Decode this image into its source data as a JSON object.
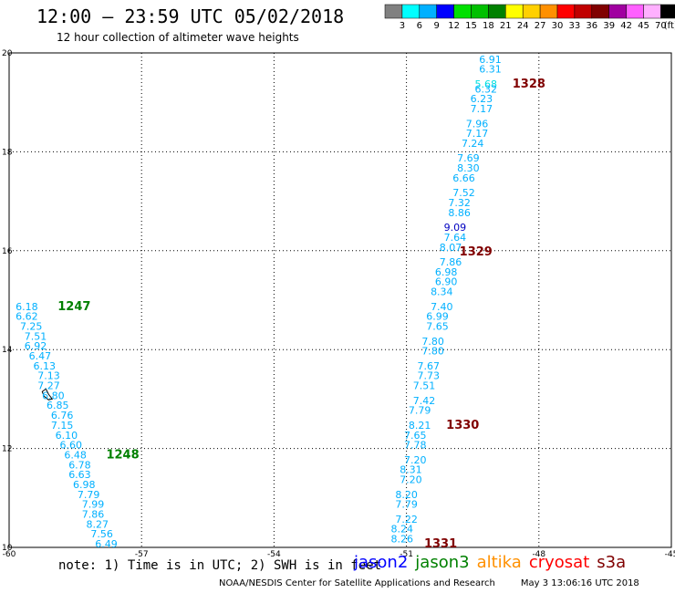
{
  "header": {
    "title": "12:00 — 23:59 UTC 05/02/2018",
    "subtitle": "12 hour collection of altimeter wave heights"
  },
  "colorbar": {
    "unit": "(ft)",
    "bins": [
      {
        "color": "#808080",
        "label": "3"
      },
      {
        "color": "#00ffff",
        "label": "6"
      },
      {
        "color": "#00b0ff",
        "label": "9"
      },
      {
        "color": "#0000ff",
        "label": "12"
      },
      {
        "color": "#00e000",
        "label": "15"
      },
      {
        "color": "#00c000",
        "label": "18"
      },
      {
        "color": "#008000",
        "label": "21"
      },
      {
        "color": "#ffff00",
        "label": "24"
      },
      {
        "color": "#ffd000",
        "label": "27"
      },
      {
        "color": "#ff9000",
        "label": "30"
      },
      {
        "color": "#ff0000",
        "label": "33"
      },
      {
        "color": "#c00000",
        "label": "36"
      },
      {
        "color": "#800000",
        "label": "39"
      },
      {
        "color": "#a000a0",
        "label": "42"
      },
      {
        "color": "#ff60ff",
        "label": "45"
      },
      {
        "color": "#ffb0ff",
        "label": "70"
      },
      {
        "color": "#000000",
        "label": ""
      }
    ]
  },
  "map": {
    "lon_range": [
      -60,
      -45
    ],
    "lat_range": [
      10,
      20
    ],
    "x_ticks": [
      -60,
      -57,
      -54,
      -51,
      -48,
      -45
    ],
    "y_ticks": [
      10,
      12,
      14,
      16,
      18,
      20
    ],
    "grid": true
  },
  "chart_data": {
    "type": "scatter",
    "tracks": [
      {
        "label": "1247",
        "label_color": "#008000",
        "label_lon": -58.9,
        "label_lat": 14.8,
        "color": "#00b0ff",
        "points": [
          {
            "lon": -59.6,
            "lat": 14.8,
            "v": "6.18"
          },
          {
            "lon": -59.6,
            "lat": 14.6,
            "v": "6.62"
          },
          {
            "lon": -59.5,
            "lat": 14.4,
            "v": "7.25"
          },
          {
            "lon": -59.4,
            "lat": 14.2,
            "v": "7.51"
          },
          {
            "lon": -59.4,
            "lat": 14.0,
            "v": "6.92"
          },
          {
            "lon": -59.3,
            "lat": 13.8,
            "v": "6.47"
          },
          {
            "lon": -59.2,
            "lat": 13.6,
            "v": "6.13"
          },
          {
            "lon": -59.1,
            "lat": 13.4,
            "v": "7.13"
          },
          {
            "lon": -59.1,
            "lat": 13.2,
            "v": "7.27"
          },
          {
            "lon": -59.0,
            "lat": 13.0,
            "v": "6.80"
          },
          {
            "lon": -58.9,
            "lat": 12.8,
            "v": "6.85"
          },
          {
            "lon": -58.8,
            "lat": 12.6,
            "v": "6.76"
          },
          {
            "lon": -58.8,
            "lat": 12.4,
            "v": "7.15"
          },
          {
            "lon": -58.7,
            "lat": 12.2,
            "v": "6.10"
          },
          {
            "lon": -58.6,
            "lat": 12.0,
            "v": "6.60"
          }
        ]
      },
      {
        "label": "1248",
        "label_color": "#008000",
        "label_lon": -57.8,
        "label_lat": 11.8,
        "color": "#00b0ff",
        "points": [
          {
            "lon": -58.5,
            "lat": 11.8,
            "v": "6.48"
          },
          {
            "lon": -58.4,
            "lat": 11.6,
            "v": "6.78"
          },
          {
            "lon": -58.4,
            "lat": 11.4,
            "v": "6.63"
          },
          {
            "lon": -58.3,
            "lat": 11.2,
            "v": "6.98"
          },
          {
            "lon": -58.2,
            "lat": 11.0,
            "v": "7.79"
          },
          {
            "lon": -58.1,
            "lat": 10.8,
            "v": "7.99"
          },
          {
            "lon": -58.1,
            "lat": 10.6,
            "v": "7.86"
          },
          {
            "lon": -58.0,
            "lat": 10.4,
            "v": "8.27"
          },
          {
            "lon": -57.9,
            "lat": 10.2,
            "v": "7.56"
          },
          {
            "lon": -57.8,
            "lat": 10.0,
            "v": "6.49"
          }
        ]
      },
      {
        "label": "1328",
        "label_color": "#800000",
        "label_lon": -48.6,
        "label_lat": 19.3,
        "color": "#00b0ff",
        "points": [
          {
            "lon": -49.1,
            "lat": 19.8,
            "v": "6.91"
          },
          {
            "lon": -49.1,
            "lat": 19.6,
            "v": "6.31"
          },
          {
            "lon": -49.2,
            "lat": 19.3,
            "v": "5.68",
            "color": "#00e0e0"
          },
          {
            "lon": -49.2,
            "lat": 19.2,
            "v": "6.32"
          },
          {
            "lon": -49.3,
            "lat": 19.0,
            "v": "6.23"
          },
          {
            "lon": -49.3,
            "lat": 18.8,
            "v": "7.17"
          },
          {
            "lon": -49.4,
            "lat": 18.5,
            "v": "7.96"
          },
          {
            "lon": -49.4,
            "lat": 18.3,
            "v": "7.17"
          },
          {
            "lon": -49.5,
            "lat": 18.1,
            "v": "7.24"
          }
        ]
      },
      {
        "label": "1329",
        "label_color": "#800000",
        "label_lon": -49.8,
        "label_lat": 15.9,
        "color": "#00b0ff",
        "points": [
          {
            "lon": -49.6,
            "lat": 17.8,
            "v": "7.69"
          },
          {
            "lon": -49.6,
            "lat": 17.6,
            "v": "8.30"
          },
          {
            "lon": -49.7,
            "lat": 17.4,
            "v": "6.66"
          },
          {
            "lon": -49.7,
            "lat": 17.1,
            "v": "7.52"
          },
          {
            "lon": -49.8,
            "lat": 16.9,
            "v": "7.32"
          },
          {
            "lon": -49.8,
            "lat": 16.7,
            "v": "8.86"
          },
          {
            "lon": -49.9,
            "lat": 16.4,
            "v": "9.09",
            "color": "#0000c0"
          },
          {
            "lon": -49.9,
            "lat": 16.2,
            "v": "7.64"
          },
          {
            "lon": -50.0,
            "lat": 16.0,
            "v": "8.07"
          },
          {
            "lon": -50.0,
            "lat": 15.7,
            "v": "7.86"
          },
          {
            "lon": -50.1,
            "lat": 15.5,
            "v": "6.98"
          },
          {
            "lon": -50.1,
            "lat": 15.3,
            "v": "6.90"
          },
          {
            "lon": -50.2,
            "lat": 15.1,
            "v": "8.34"
          },
          {
            "lon": -50.2,
            "lat": 14.8,
            "v": "7.40"
          },
          {
            "lon": -50.3,
            "lat": 14.6,
            "v": "6.99"
          },
          {
            "lon": -50.3,
            "lat": 14.4,
            "v": "7.65"
          },
          {
            "lon": -50.4,
            "lat": 14.1,
            "v": "7.80"
          }
        ]
      },
      {
        "label": "1330",
        "label_color": "#800000",
        "label_lon": -50.1,
        "label_lat": 12.4,
        "color": "#00b0ff",
        "points": [
          {
            "lon": -50.4,
            "lat": 13.9,
            "v": "7.80"
          },
          {
            "lon": -50.5,
            "lat": 13.6,
            "v": "7.67"
          },
          {
            "lon": -50.5,
            "lat": 13.4,
            "v": "7.73"
          },
          {
            "lon": -50.6,
            "lat": 13.2,
            "v": "7.51"
          },
          {
            "lon": -50.6,
            "lat": 12.9,
            "v": "7.42"
          },
          {
            "lon": -50.7,
            "lat": 12.7,
            "v": "7.79"
          },
          {
            "lon": -50.7,
            "lat": 12.4,
            "v": "8.21"
          },
          {
            "lon": -50.8,
            "lat": 12.2,
            "v": "7.65"
          },
          {
            "lon": -50.8,
            "lat": 12.0,
            "v": "7.78"
          },
          {
            "lon": -50.8,
            "lat": 11.7,
            "v": "7.20"
          },
          {
            "lon": -50.9,
            "lat": 11.5,
            "v": "8.31"
          }
        ]
      },
      {
        "label": "1331",
        "label_color": "#800000",
        "label_lon": -50.6,
        "label_lat": 10.0,
        "color": "#00b0ff",
        "points": [
          {
            "lon": -50.9,
            "lat": 11.3,
            "v": "7.20"
          },
          {
            "lon": -51.0,
            "lat": 11.0,
            "v": "8.20"
          },
          {
            "lon": -51.0,
            "lat": 10.8,
            "v": "7.79"
          },
          {
            "lon": -51.0,
            "lat": 10.5,
            "v": "7.22"
          },
          {
            "lon": -51.1,
            "lat": 10.3,
            "v": "8.24"
          },
          {
            "lon": -51.1,
            "lat": 10.1,
            "v": "8.26"
          }
        ]
      }
    ]
  },
  "footer": {
    "note": "note: 1) Time is in UTC; 2) SWH is in feet",
    "legend": [
      {
        "name": "jason2",
        "color": "#0000ff"
      },
      {
        "name": "jason3",
        "color": "#008000"
      },
      {
        "name": "altika",
        "color": "#ff9000"
      },
      {
        "name": "cryosat",
        "color": "#ff0000"
      },
      {
        "name": "s3a",
        "color": "#800000"
      }
    ],
    "credit": "NOAA/NESDIS Center for Satellite Applications and Research",
    "timestamp": "May  3 13:06:16 UTC 2018"
  }
}
